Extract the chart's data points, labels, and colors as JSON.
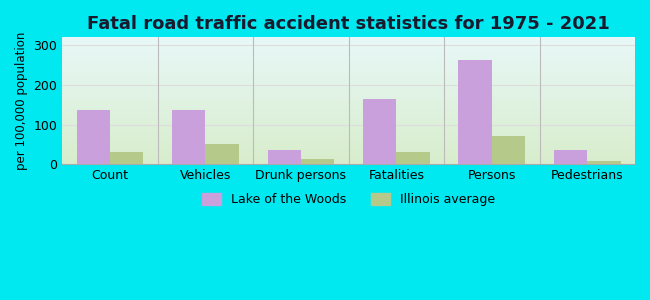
{
  "title": "Fatal road traffic accident statistics for 1975 - 2021",
  "ylabel": "per 100,000 population",
  "categories": [
    "Count",
    "Vehicles",
    "Drunk persons",
    "Fatalities",
    "Persons",
    "Pedestrians"
  ],
  "lake_values": [
    138,
    138,
    35,
    165,
    263,
    35
  ],
  "illinois_values": [
    30,
    50,
    13,
    30,
    70,
    8
  ],
  "lake_color": "#c9a0dc",
  "illinois_color": "#b5c98a",
  "ylim": [
    0,
    320
  ],
  "yticks": [
    0,
    100,
    200,
    300
  ],
  "bar_width": 0.35,
  "outer_bg": "#00e8f0",
  "legend_lake": "Lake of the Woods",
  "legend_illinois": "Illinois average",
  "title_fontsize": 13,
  "axis_label_fontsize": 8.5,
  "tick_fontsize": 9,
  "legend_fontsize": 9,
  "grid_color": "#dddddd"
}
